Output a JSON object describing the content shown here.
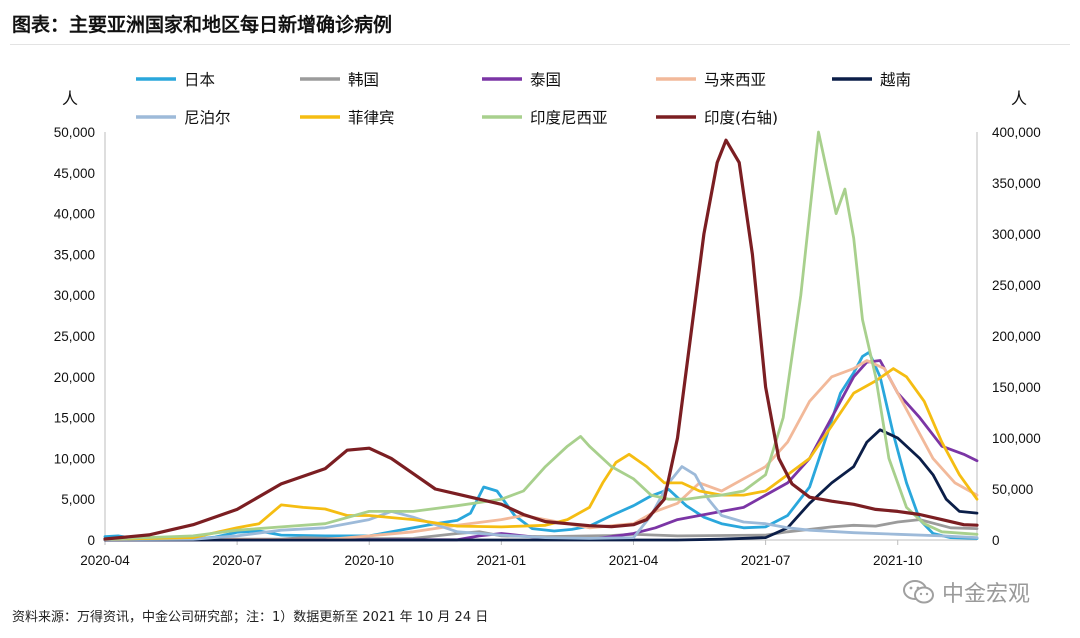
{
  "title": "图表：主要亚洲国家和地区每日新增确诊病例",
  "footnote": "资料来源：万得资讯，中金公司研究部；注：1）数据更新至 2021 年 10 月 24 日",
  "watermark": "中金宏观",
  "watermark_icon": "wechat-icon",
  "chart_data": {
    "type": "line",
    "x_unit": "month",
    "x_range": [
      "2020-04",
      "2021-10-24"
    ],
    "x_ticks": [
      "2020-04",
      "2020-07",
      "2020-10",
      "2021-01",
      "2021-04",
      "2021-07",
      "2021-10"
    ],
    "left_axis": {
      "unit": "人",
      "min": 0,
      "max": 50000,
      "step": 5000,
      "ticks": [
        "0",
        "5,000",
        "10,000",
        "15,000",
        "20,000",
        "25,000",
        "30,000",
        "35,000",
        "40,000",
        "45,000",
        "50,000"
      ]
    },
    "right_axis": {
      "unit": "人",
      "min": 0,
      "max": 400000,
      "step": 50000,
      "ticks": [
        "0",
        "50,000",
        "100,000",
        "150,000",
        "200,000",
        "250,000",
        "300,000",
        "350,000",
        "400,000"
      ]
    },
    "legend_position": "top",
    "series": [
      {
        "name": "日本",
        "color": "#2aa7dc",
        "axis": "left",
        "width": 2.8,
        "points": [
          [
            0,
            400
          ],
          [
            0.3,
            500
          ],
          [
            0.7,
            150
          ],
          [
            1,
            100
          ],
          [
            1.5,
            150
          ],
          [
            2,
            100
          ],
          [
            2.5,
            350
          ],
          [
            3,
            950
          ],
          [
            3.5,
            1100
          ],
          [
            4,
            600
          ],
          [
            5,
            500
          ],
          [
            6,
            500
          ],
          [
            7,
            1500
          ],
          [
            7.5,
            2000
          ],
          [
            8,
            2400
          ],
          [
            8.3,
            3300
          ],
          [
            8.6,
            6500
          ],
          [
            8.9,
            6000
          ],
          [
            9.3,
            3000
          ],
          [
            9.7,
            1400
          ],
          [
            10.2,
            1100
          ],
          [
            10.6,
            1300
          ],
          [
            11,
            1700
          ],
          [
            11.5,
            3000
          ],
          [
            12,
            4200
          ],
          [
            12.4,
            5400
          ],
          [
            12.8,
            6200
          ],
          [
            13.2,
            4200
          ],
          [
            13.6,
            2800
          ],
          [
            14,
            2000
          ],
          [
            14.5,
            1500
          ],
          [
            15,
            1600
          ],
          [
            15.5,
            3000
          ],
          [
            16,
            6500
          ],
          [
            16.4,
            13000
          ],
          [
            16.7,
            18000
          ],
          [
            17,
            20500
          ],
          [
            17.2,
            22500
          ],
          [
            17.35,
            23000
          ],
          [
            17.6,
            20000
          ],
          [
            17.9,
            13000
          ],
          [
            18.2,
            7000
          ],
          [
            18.5,
            2500
          ],
          [
            18.8,
            800
          ],
          [
            19.2,
            300
          ],
          [
            19.8,
            200
          ]
        ]
      },
      {
        "name": "韩国",
        "color": "#9b9b9b",
        "axis": "left",
        "width": 2.8,
        "points": [
          [
            0,
            100
          ],
          [
            4,
            100
          ],
          [
            4.5,
            300
          ],
          [
            5.5,
            150
          ],
          [
            7,
            200
          ],
          [
            8,
            800
          ],
          [
            8.5,
            1000
          ],
          [
            9,
            500
          ],
          [
            10,
            400
          ],
          [
            11.5,
            550
          ],
          [
            12,
            700
          ],
          [
            13,
            500
          ],
          [
            14,
            550
          ],
          [
            15,
            600
          ],
          [
            15.5,
            1000
          ],
          [
            16,
            1300
          ],
          [
            16.5,
            1600
          ],
          [
            17,
            1800
          ],
          [
            17.5,
            1700
          ],
          [
            18,
            2200
          ],
          [
            18.5,
            2500
          ],
          [
            19.2,
            1500
          ],
          [
            19.8,
            1400
          ]
        ]
      },
      {
        "name": "泰国",
        "color": "#7b35a5",
        "axis": "left",
        "width": 2.8,
        "points": [
          [
            0,
            30
          ],
          [
            8,
            30
          ],
          [
            8.5,
            500
          ],
          [
            9,
            800
          ],
          [
            9.5,
            500
          ],
          [
            10,
            200
          ],
          [
            11,
            50
          ],
          [
            12,
            800
          ],
          [
            12.5,
            1500
          ],
          [
            13,
            2500
          ],
          [
            13.5,
            3000
          ],
          [
            14,
            3500
          ],
          [
            14.5,
            4000
          ],
          [
            15,
            5500
          ],
          [
            15.5,
            7000
          ],
          [
            16,
            10000
          ],
          [
            16.5,
            15000
          ],
          [
            17,
            20000
          ],
          [
            17.3,
            21800
          ],
          [
            17.6,
            22000
          ],
          [
            18,
            18000
          ],
          [
            18.5,
            15000
          ],
          [
            19,
            11500
          ],
          [
            19.5,
            10500
          ],
          [
            19.8,
            9700
          ]
        ]
      },
      {
        "name": "马来西亚",
        "color": "#f2b99a",
        "axis": "left",
        "width": 2.8,
        "points": [
          [
            0,
            100
          ],
          [
            5,
            50
          ],
          [
            6,
            500
          ],
          [
            7,
            1000
          ],
          [
            8,
            1800
          ],
          [
            9,
            2500
          ],
          [
            9.5,
            3000
          ],
          [
            10,
            2500
          ],
          [
            11,
            1500
          ],
          [
            12,
            2000
          ],
          [
            12.5,
            3500
          ],
          [
            13,
            4500
          ],
          [
            13.5,
            7000
          ],
          [
            14,
            6000
          ],
          [
            14.5,
            7500
          ],
          [
            15,
            9000
          ],
          [
            15.5,
            12000
          ],
          [
            16,
            17000
          ],
          [
            16.5,
            20000
          ],
          [
            17,
            21000
          ],
          [
            17.3,
            22000
          ],
          [
            17.7,
            21000
          ],
          [
            18.2,
            16000
          ],
          [
            18.8,
            10000
          ],
          [
            19.3,
            7000
          ],
          [
            19.8,
            5500
          ]
        ]
      },
      {
        "name": "越南",
        "color": "#0b1e48",
        "axis": "left",
        "width": 2.8,
        "points": [
          [
            0,
            0
          ],
          [
            13,
            0
          ],
          [
            14,
            100
          ],
          [
            15,
            300
          ],
          [
            15.5,
            1500
          ],
          [
            16,
            4500
          ],
          [
            16.5,
            7000
          ],
          [
            17,
            9000
          ],
          [
            17.3,
            12000
          ],
          [
            17.6,
            13500
          ],
          [
            18,
            12500
          ],
          [
            18.5,
            10000
          ],
          [
            18.8,
            8000
          ],
          [
            19.1,
            5000
          ],
          [
            19.4,
            3500
          ],
          [
            19.8,
            3300
          ]
        ]
      },
      {
        "name": "尼泊尔",
        "color": "#9dbad9",
        "axis": "left",
        "width": 2.8,
        "points": [
          [
            0,
            50
          ],
          [
            2,
            100
          ],
          [
            3,
            500
          ],
          [
            4,
            1200
          ],
          [
            5,
            1500
          ],
          [
            6,
            2500
          ],
          [
            6.5,
            3500
          ],
          [
            7,
            2800
          ],
          [
            8,
            1000
          ],
          [
            9,
            600
          ],
          [
            10,
            300
          ],
          [
            11,
            200
          ],
          [
            12,
            300
          ],
          [
            12.4,
            3000
          ],
          [
            12.8,
            7000
          ],
          [
            13.1,
            9000
          ],
          [
            13.4,
            8000
          ],
          [
            13.7,
            5000
          ],
          [
            14,
            3000
          ],
          [
            14.5,
            2200
          ],
          [
            15,
            2000
          ],
          [
            15.5,
            1500
          ],
          [
            16,
            1200
          ],
          [
            17,
            900
          ],
          [
            18,
            700
          ],
          [
            19,
            500
          ],
          [
            19.8,
            300
          ]
        ]
      },
      {
        "name": "菲律宾",
        "color": "#f5bd12",
        "axis": "left",
        "width": 2.8,
        "points": [
          [
            0,
            100
          ],
          [
            2,
            300
          ],
          [
            3,
            1500
          ],
          [
            3.5,
            2000
          ],
          [
            4,
            4300
          ],
          [
            4.5,
            4000
          ],
          [
            5,
            3800
          ],
          [
            5.5,
            3000
          ],
          [
            6,
            3000
          ],
          [
            7,
            2500
          ],
          [
            8,
            1700
          ],
          [
            9,
            1600
          ],
          [
            10,
            1800
          ],
          [
            10.5,
            2500
          ],
          [
            11,
            4000
          ],
          [
            11.3,
            7000
          ],
          [
            11.6,
            9500
          ],
          [
            11.9,
            10500
          ],
          [
            12.3,
            9000
          ],
          [
            12.7,
            7000
          ],
          [
            13.1,
            7000
          ],
          [
            13.5,
            6000
          ],
          [
            14,
            5500
          ],
          [
            14.5,
            5500
          ],
          [
            15,
            6000
          ],
          [
            15.5,
            8000
          ],
          [
            16,
            10000
          ],
          [
            16.5,
            14000
          ],
          [
            17,
            18000
          ],
          [
            17.5,
            19500
          ],
          [
            17.9,
            21000
          ],
          [
            18.2,
            20000
          ],
          [
            18.6,
            17000
          ],
          [
            19,
            12000
          ],
          [
            19.4,
            8000
          ],
          [
            19.8,
            5000
          ]
        ]
      },
      {
        "name": "印度尼西亚",
        "color": "#a8d08d",
        "axis": "left",
        "width": 2.8,
        "points": [
          [
            0,
            100
          ],
          [
            2,
            500
          ],
          [
            3,
            1200
          ],
          [
            4,
            1600
          ],
          [
            5,
            2000
          ],
          [
            6,
            3500
          ],
          [
            7,
            3500
          ],
          [
            8,
            4200
          ],
          [
            9,
            5000
          ],
          [
            9.5,
            6000
          ],
          [
            10,
            9000
          ],
          [
            10.5,
            11500
          ],
          [
            10.8,
            12700
          ],
          [
            11,
            11500
          ],
          [
            11.5,
            9000
          ],
          [
            12,
            7500
          ],
          [
            12.4,
            5500
          ],
          [
            12.8,
            5000
          ],
          [
            13.2,
            5000
          ],
          [
            13.6,
            5300
          ],
          [
            14,
            5500
          ],
          [
            14.5,
            6000
          ],
          [
            15,
            8000
          ],
          [
            15.4,
            15000
          ],
          [
            15.8,
            30000
          ],
          [
            16,
            40000
          ],
          [
            16.2,
            50000
          ],
          [
            16.4,
            45000
          ],
          [
            16.6,
            40000
          ],
          [
            16.8,
            43000
          ],
          [
            17,
            37000
          ],
          [
            17.2,
            27000
          ],
          [
            17.5,
            20000
          ],
          [
            17.8,
            10000
          ],
          [
            18.2,
            4000
          ],
          [
            18.6,
            2000
          ],
          [
            19,
            1000
          ],
          [
            19.8,
            700
          ]
        ]
      },
      {
        "name": "印度(右轴)",
        "color": "#7b1e22",
        "axis": "right",
        "width": 3.2,
        "points": [
          [
            0,
            1000
          ],
          [
            1,
            5000
          ],
          [
            2,
            15000
          ],
          [
            3,
            30000
          ],
          [
            4,
            55000
          ],
          [
            5,
            70000
          ],
          [
            5.5,
            88000
          ],
          [
            6,
            90000
          ],
          [
            6.5,
            80000
          ],
          [
            7,
            65000
          ],
          [
            7.5,
            50000
          ],
          [
            8,
            45000
          ],
          [
            8.5,
            40000
          ],
          [
            9,
            35000
          ],
          [
            9.5,
            25000
          ],
          [
            10,
            18000
          ],
          [
            11,
            14000
          ],
          [
            11.5,
            13000
          ],
          [
            12,
            15000
          ],
          [
            12.3,
            20000
          ],
          [
            12.7,
            40000
          ],
          [
            13,
            100000
          ],
          [
            13.3,
            200000
          ],
          [
            13.6,
            300000
          ],
          [
            13.9,
            370000
          ],
          [
            14.1,
            392000
          ],
          [
            14.4,
            370000
          ],
          [
            14.7,
            280000
          ],
          [
            15,
            150000
          ],
          [
            15.3,
            80000
          ],
          [
            15.6,
            55000
          ],
          [
            16,
            42000
          ],
          [
            16.5,
            38000
          ],
          [
            17,
            35000
          ],
          [
            17.5,
            30000
          ],
          [
            18,
            28000
          ],
          [
            18.5,
            25000
          ],
          [
            19,
            20000
          ],
          [
            19.5,
            15000
          ],
          [
            19.8,
            14500
          ]
        ]
      }
    ]
  }
}
